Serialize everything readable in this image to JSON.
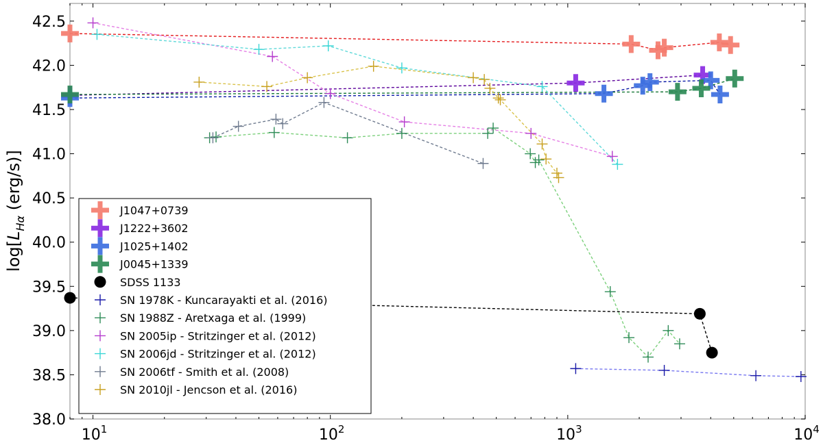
{
  "chart_data": {
    "type": "scatter",
    "title": "",
    "xlabel": "",
    "ylabel": "log[L_Hα (erg/s)]",
    "ylabel_parts": {
      "prefix": "log[",
      "symbol": "L",
      "subscript": "Hα",
      "suffix": " (erg/s)]"
    },
    "xscale": "log",
    "xlim": [
      8,
      10000
    ],
    "ylim": [
      38.0,
      42.7
    ],
    "xticks": [
      10,
      100,
      1000,
      10000
    ],
    "xtick_labels": [
      {
        "base": "10",
        "exp": "1"
      },
      {
        "base": "10",
        "exp": "2"
      },
      {
        "base": "10",
        "exp": "3"
      },
      {
        "base": "10",
        "exp": "4"
      }
    ],
    "yticks": [
      38.0,
      38.5,
      39.0,
      39.5,
      40.0,
      40.5,
      41.0,
      41.5,
      42.0,
      42.5
    ],
    "ytick_labels": [
      "38.0",
      "38.5",
      "39.0",
      "39.5",
      "40.0",
      "40.5",
      "41.0",
      "41.5",
      "42.0",
      "42.5"
    ],
    "legend_position": "lower-left",
    "series": [
      {
        "name": "J1047+0739",
        "color": "#f47c6e",
        "marker": "bigplus",
        "line_color": "#e41a1c",
        "x": [
          8,
          1850,
          2400,
          2550,
          4350,
          4850
        ],
        "y": [
          42.36,
          42.24,
          42.17,
          42.2,
          42.26,
          42.23
        ]
      },
      {
        "name": "J1222+3602",
        "color": "#8a2be2",
        "marker": "bigplus",
        "line_color": "#5a009a",
        "x": [
          8,
          1080,
          3700
        ],
        "y": [
          41.66,
          41.8,
          41.89
        ]
      },
      {
        "name": "J1025+1402",
        "color": "#3d6fe0",
        "marker": "bigplus",
        "line_color": "#0a1aa6",
        "x": [
          8,
          1420,
          2070,
          2220,
          4000,
          4380
        ],
        "y": [
          41.63,
          41.68,
          41.77,
          41.81,
          41.83,
          41.67
        ]
      },
      {
        "name": "J0045+1339",
        "color": "#2e8b57",
        "marker": "bigplus",
        "line_color": "#1b7a3a",
        "x": [
          8,
          2900,
          3650,
          5050
        ],
        "y": [
          41.67,
          41.7,
          41.74,
          41.85
        ]
      },
      {
        "name": "SDSS 1133",
        "color": "#000000",
        "marker": "circle",
        "line_color": "#000000",
        "x": [
          8,
          3600,
          4050
        ],
        "y": [
          39.37,
          39.19,
          38.75
        ]
      },
      {
        "name": "SN 1978K - Kuncarayakti et al. (2016)",
        "color": "#1a1aa8",
        "marker": "plus",
        "line_color": "#7878f0",
        "x": [
          1080,
          2550,
          6200,
          9600
        ],
        "y": [
          38.57,
          38.55,
          38.49,
          38.48
        ]
      },
      {
        "name": "SN 1988Z - Aretxaga et al. (1999)",
        "color": "#2e8b57",
        "marker": "plus",
        "line_color": "#7cd07c",
        "x": [
          31,
          33,
          58,
          118,
          200,
          460,
          485,
          695,
          730,
          755,
          1510,
          1810,
          2180,
          2650,
          2960
        ],
        "y": [
          41.18,
          41.19,
          41.24,
          41.18,
          41.23,
          41.23,
          41.29,
          41.0,
          40.9,
          40.93,
          39.44,
          38.92,
          38.7,
          39.0,
          38.85
        ]
      },
      {
        "name": "SN 2005ip - Stritzinger et al. (2012)",
        "color": "#b43ccd",
        "marker": "plus",
        "line_color": "#e57fe5",
        "x": [
          10,
          57,
          100,
          205,
          700,
          1540
        ],
        "y": [
          42.48,
          42.1,
          41.68,
          41.36,
          41.23,
          40.97
        ]
      },
      {
        "name": "SN 2006jd - Stritzinger et al. (2012)",
        "color": "#3ad6d6",
        "marker": "plus",
        "line_color": "#5fd9d9",
        "x": [
          10.4,
          50,
          98,
          200,
          780,
          1620
        ],
        "y": [
          42.35,
          42.18,
          42.22,
          41.97,
          41.76,
          40.88
        ]
      },
      {
        "name": "SN 2006tf - Smith et al. (2008)",
        "color": "#6f7b8f",
        "marker": "plus",
        "line_color": "#6f7b8f",
        "x": [
          32,
          41,
          59,
          63,
          94,
          440
        ],
        "y": [
          41.18,
          41.31,
          41.39,
          41.34,
          41.58,
          40.89
        ]
      },
      {
        "name": "SN 2010jl - Jencson et al. (2016)",
        "color": "#c8a020",
        "marker": "plus",
        "line_color": "#d9c24a",
        "x": [
          28,
          54,
          80,
          152,
          400,
          445,
          470,
          510,
          520,
          780,
          810,
          900,
          915
        ],
        "y": [
          41.81,
          41.76,
          41.86,
          41.99,
          41.86,
          41.84,
          41.74,
          41.63,
          41.61,
          41.11,
          40.94,
          40.78,
          40.73
        ]
      }
    ]
  }
}
